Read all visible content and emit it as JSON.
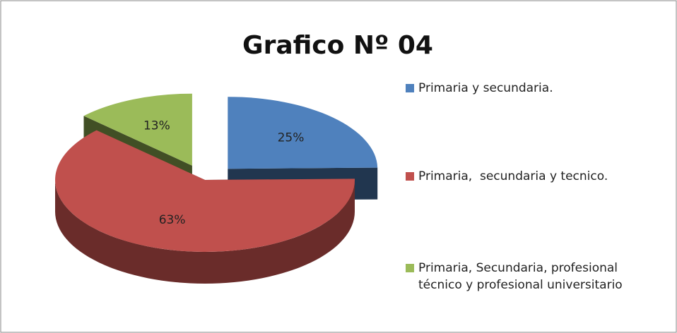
{
  "chart_data": {
    "type": "pie",
    "title": "Grafico Nº 04",
    "categories": [
      "Primaria y secundaria.",
      "Primaria,  secundaria y tecnico.",
      "Primaria, Secundaria, profesional técnico y profesional universitario"
    ],
    "values": [
      25,
      63,
      13
    ],
    "value_labels": [
      "25%",
      "63%",
      "13%"
    ],
    "colors": [
      "#4f81bd",
      "#c0504d",
      "#9bbb59"
    ],
    "exploded": [
      true,
      false,
      true
    ],
    "legend": "right"
  }
}
